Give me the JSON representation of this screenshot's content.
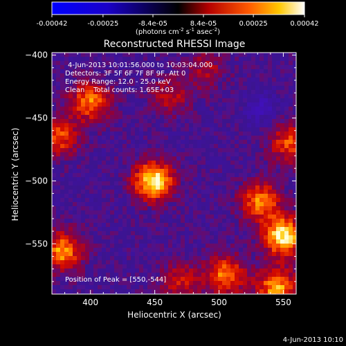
{
  "chart_data": {
    "type": "heatmap",
    "title": "Reconstructed RHESSI Image",
    "xlabel": "Heliocentric X (arcsec)",
    "ylabel": "Heliocentric Y (arcsec)",
    "xlim": [
      370,
      560
    ],
    "ylim": [
      -590,
      -398
    ],
    "x_ticks": [
      400,
      450,
      500,
      550
    ],
    "y_ticks": [
      -400,
      -450,
      -500,
      -550
    ],
    "colorbar": {
      "range": [
        -0.00042,
        0.00042
      ],
      "tick_values": [
        -0.00042,
        -0.00025,
        -8.4e-05,
        8.4e-05,
        0.00025,
        0.00042
      ],
      "tick_labels": [
        "-0.00042",
        "-0.00025",
        "-8.4e-05",
        "8.4e-05",
        "0.00025",
        "0.00042"
      ],
      "label_prefix": "(photons cm",
      "label_exp1": "-2",
      "label_mid": " s",
      "label_exp2": "-1",
      "label_mid2": " asec",
      "label_exp3": "-2",
      "label_suffix": ")"
    },
    "annotations": {
      "time_range": "4-Jun-2013 10:01:56.000 to 10:03:04.000",
      "detectors": "Detectors: 3F 5F 6F 7F 8F 9F, Att 0",
      "energy": "Energy Range: 12.0 - 25.0 keV",
      "clean": "Clean    Total counts: 1.65E+03",
      "peak": "Position of Peak = [550,-544]"
    },
    "sources": [
      {
        "x": 449,
        "y": -500,
        "peak": 0.00042
      },
      {
        "x": 400,
        "y": -437,
        "peak": 0.0003
      },
      {
        "x": 375,
        "y": -465,
        "peak": 0.00026
      },
      {
        "x": 550,
        "y": -544,
        "peak": 0.00042
      },
      {
        "x": 532,
        "y": -516,
        "peak": 0.0003
      },
      {
        "x": 555,
        "y": -470,
        "peak": 0.00026
      },
      {
        "x": 505,
        "y": -575,
        "peak": 0.0003
      },
      {
        "x": 545,
        "y": -585,
        "peak": 0.00034
      },
      {
        "x": 378,
        "y": -556,
        "peak": 0.00032
      },
      {
        "x": 470,
        "y": -580,
        "peak": 0.00018
      },
      {
        "x": 462,
        "y": -433,
        "peak": 0.00016
      },
      {
        "x": 490,
        "y": -412,
        "peak": 0.00014
      }
    ],
    "negative_minimum": {
      "x": 533,
      "y": -443
    }
  },
  "footer": {
    "date": "4-Jun-2013 10:10"
  }
}
